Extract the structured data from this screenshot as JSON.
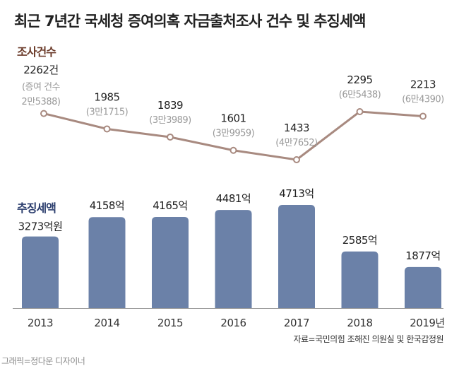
{
  "title": "최근 7년간 국세청 증여의혹 자금출처조사 건수 및 추징세액",
  "source": "자료=국민의힘 조해진 의원실 및 한국감정원",
  "credit": "그래픽=정다운 디자이너",
  "colors": {
    "line": "#a88a80",
    "bar": "#6b81a8",
    "count_label": "#6b3b2a",
    "tax_label": "#2c3e6e",
    "axis": "#999999"
  },
  "chart_data": [
    {
      "type": "line",
      "section_label": "조사건수",
      "categories": [
        "2013",
        "2014",
        "2015",
        "2016",
        "2017",
        "2018",
        "2019년"
      ],
      "values": [
        2262,
        1985,
        1839,
        1601,
        1433,
        2295,
        2213
      ],
      "value_labels": [
        "2262건",
        "1985",
        "1839",
        "1601",
        "1433",
        "2295",
        "2213"
      ],
      "sub_labels": [
        "(증여 건수|2만5388)",
        "(3만1715)",
        "(3만3989)",
        "(3만9959)",
        "(4만7652)",
        "(6만5438)",
        "(6만4390)"
      ],
      "gift_counts": [
        25388,
        31715,
        33989,
        39959,
        47652,
        65438,
        64390
      ]
    },
    {
      "type": "bar",
      "section_label": "추징세액",
      "categories": [
        "2013",
        "2014",
        "2015",
        "2016",
        "2017",
        "2018",
        "2019년"
      ],
      "values": [
        3273,
        4158,
        4165,
        4481,
        4713,
        2585,
        1877
      ],
      "value_labels": [
        "3273억원",
        "4158억",
        "4165억",
        "4481억",
        "4713억",
        "2585억",
        "1877억"
      ]
    }
  ]
}
